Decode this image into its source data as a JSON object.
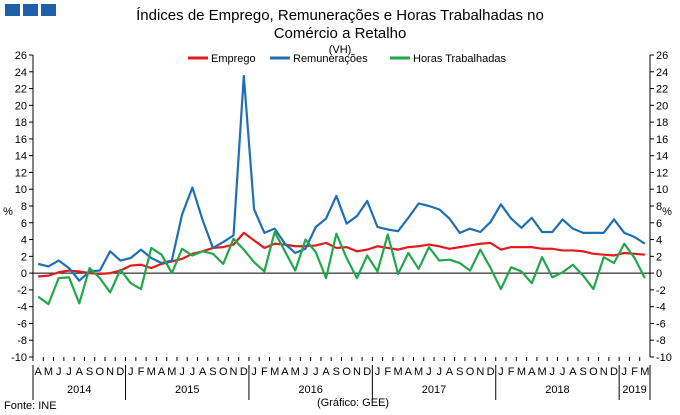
{
  "header": {
    "title_line1": "Índices de Emprego, Remunerações e Horas Trabalhadas no",
    "title_line2": "Comércio a Retalho",
    "subtitle": "(VH)"
  },
  "footer": {
    "source": "Fonte: INE",
    "credit": "(Gráfico: GEE)"
  },
  "colors": {
    "emprego": "#e41a1c",
    "remuneracoes": "#1f6fb4",
    "horas": "#22a84a",
    "logo": "#1f5fa8"
  },
  "chart_data": {
    "type": "line",
    "title": "Índices de Emprego, Remunerações e Horas Trabalhadas no Comércio a Retalho",
    "subtitle": "(VH)",
    "ylabel": "%",
    "ylim": [
      -10,
      26
    ],
    "yticks": [
      -10,
      -8,
      -6,
      -4,
      -2,
      0,
      2,
      4,
      6,
      8,
      10,
      12,
      14,
      16,
      18,
      20,
      22,
      24,
      26
    ],
    "legend": "top-center",
    "grid": false,
    "x_months": [
      "A",
      "M",
      "J",
      "J",
      "A",
      "S",
      "O",
      "N",
      "D",
      "J",
      "F",
      "M",
      "A",
      "M",
      "J",
      "J",
      "A",
      "S",
      "O",
      "N",
      "D",
      "J",
      "F",
      "M",
      "A",
      "M",
      "J",
      "J",
      "A",
      "S",
      "O",
      "N",
      "D",
      "J",
      "F",
      "M",
      "A",
      "M",
      "J",
      "J",
      "A",
      "S",
      "O",
      "N",
      "D",
      "J",
      "F",
      "M",
      "A",
      "M",
      "J",
      "J",
      "A",
      "S",
      "O",
      "N",
      "D",
      "J",
      "F",
      "M"
    ],
    "x_years": [
      {
        "label": "2014",
        "start": 0,
        "end": 8
      },
      {
        "label": "2015",
        "start": 9,
        "end": 20
      },
      {
        "label": "2016",
        "start": 21,
        "end": 32
      },
      {
        "label": "2017",
        "start": 33,
        "end": 44
      },
      {
        "label": "2018",
        "start": 45,
        "end": 56
      },
      {
        "label": "2019",
        "start": 57,
        "end": 59
      }
    ],
    "series": [
      {
        "name": "Emprego",
        "color": "#e41a1c",
        "values": [
          -0.4,
          -0.3,
          0.1,
          0.3,
          0.2,
          0,
          -0.1,
          0,
          0.3,
          0.9,
          1,
          0.6,
          1.1,
          1.4,
          1.7,
          2.3,
          2.6,
          3,
          3.1,
          3.4,
          4.8,
          3.9,
          3,
          3.5,
          3.4,
          3.2,
          3.2,
          3.3,
          3.6,
          3,
          3.1,
          2.6,
          2.8,
          3.2,
          3,
          2.8,
          3.1,
          3.2,
          3.4,
          3.2,
          2.9,
          3.1,
          3.3,
          3.5,
          3.6,
          2.8,
          3.1,
          3.1,
          3.1,
          2.9,
          2.9,
          2.7,
          2.7,
          2.6,
          2.3,
          2.2,
          2.1,
          2.4,
          2.3,
          2.2
        ]
      },
      {
        "name": "Remunerações",
        "color": "#1f6fb4",
        "values": [
          1.1,
          0.8,
          1.5,
          0.6,
          -0.9,
          0.2,
          0.3,
          2.6,
          1.5,
          1.8,
          2.8,
          1.8,
          1.2,
          1.5,
          7,
          10.2,
          6.3,
          3,
          3.7,
          4.5,
          23.5,
          7.6,
          4.8,
          5.3,
          3.5,
          2.4,
          2.9,
          5.5,
          6.5,
          9.2,
          5.9,
          6.8,
          8.6,
          5.5,
          5.2,
          5,
          6.6,
          8.3,
          8,
          7.6,
          6.5,
          4.8,
          5.3,
          4.9,
          6.1,
          8.2,
          6.5,
          5.4,
          6.6,
          4.9,
          4.9,
          6.4,
          5.3,
          4.8,
          4.8,
          4.8,
          6.4,
          4.8,
          4.3,
          3.5
        ]
      },
      {
        "name": "Horas Trabalhadas",
        "color": "#22a84a",
        "values": [
          -2.8,
          -3.7,
          -0.6,
          -0.5,
          -3.6,
          0.6,
          -0.6,
          -2.3,
          0.4,
          -1.2,
          -1.9,
          3,
          2.2,
          0,
          2.9,
          2.1,
          2.6,
          2.3,
          1.1,
          4.1,
          2.8,
          1.3,
          0.2,
          4.9,
          2.6,
          0.3,
          4,
          2.5,
          -0.6,
          4.7,
          1.8,
          -0.6,
          2.1,
          0.2,
          4.6,
          -0.1,
          2.4,
          0.5,
          3.1,
          1.5,
          1.6,
          1.2,
          0.3,
          2.8,
          0.6,
          -1.9,
          0.7,
          0.2,
          -1.2,
          1.9,
          -0.5,
          0.1,
          1,
          -0.3,
          -1.9,
          1.9,
          1.2,
          3.5,
          1.8,
          -0.6
        ]
      }
    ]
  }
}
